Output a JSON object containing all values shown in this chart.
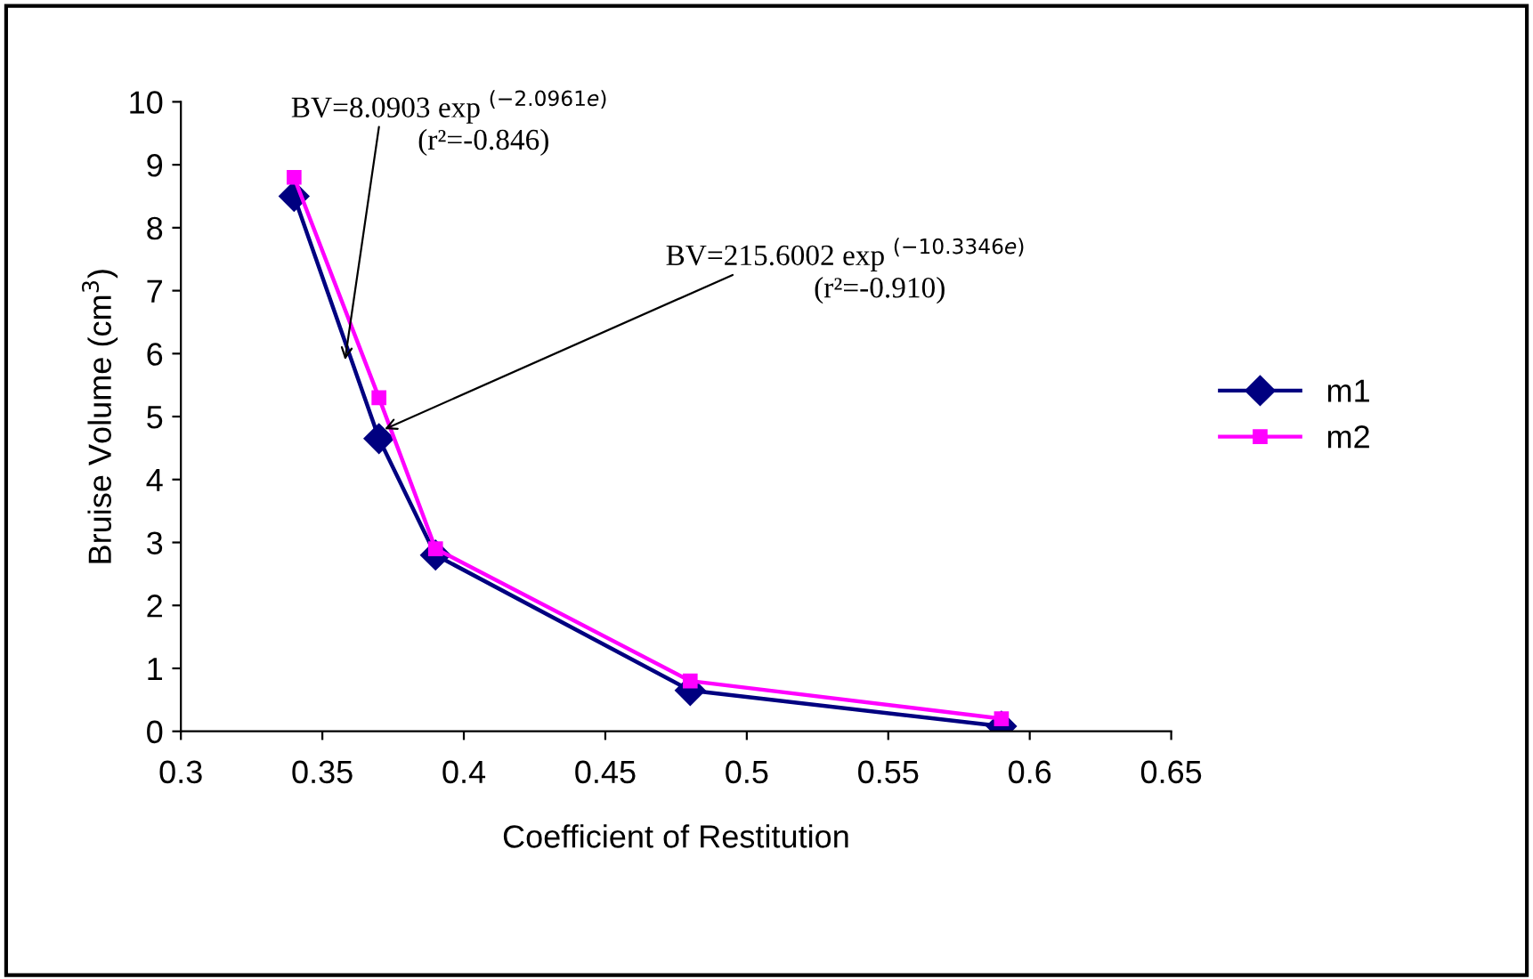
{
  "chart_data": {
    "type": "line",
    "xlabel": "Coefficient of Restitution",
    "ylabel": "Bruise Volume (cm$^{3}$)",
    "x": [
      0.34,
      0.37,
      0.39,
      0.48,
      0.59
    ],
    "series": [
      {
        "name": "m1",
        "color": "#000080",
        "marker": "diamond",
        "values": [
          8.5,
          4.65,
          2.8,
          0.65,
          0.08
        ]
      },
      {
        "name": "m2",
        "color": "#ff00ff",
        "marker": "square",
        "values": [
          8.8,
          5.3,
          2.9,
          0.8,
          0.2
        ]
      }
    ],
    "xlim": [
      0.3,
      0.65
    ],
    "xticks": [
      0.3,
      0.35,
      0.4,
      0.45,
      0.5,
      0.55,
      0.6,
      0.65
    ],
    "ylim": [
      0,
      10
    ],
    "yticks": [
      0,
      1,
      2,
      3,
      4,
      5,
      6,
      7,
      8,
      9,
      10
    ],
    "annotations": [
      {
        "text": "BV=8.0903 exp $^{(−2.0961e)}$",
        "x": 0.358,
        "y": 5.9
      },
      "(r²=-0.846)",
      {
        "text": "BV=215.6002 exp $^{(−10.3346e)}$",
        "x": 0.372,
        "y": 4.8
      },
      "(r²=-0.910)"
    ],
    "grid": false,
    "legend": "right",
    "line_style": "solid"
  }
}
